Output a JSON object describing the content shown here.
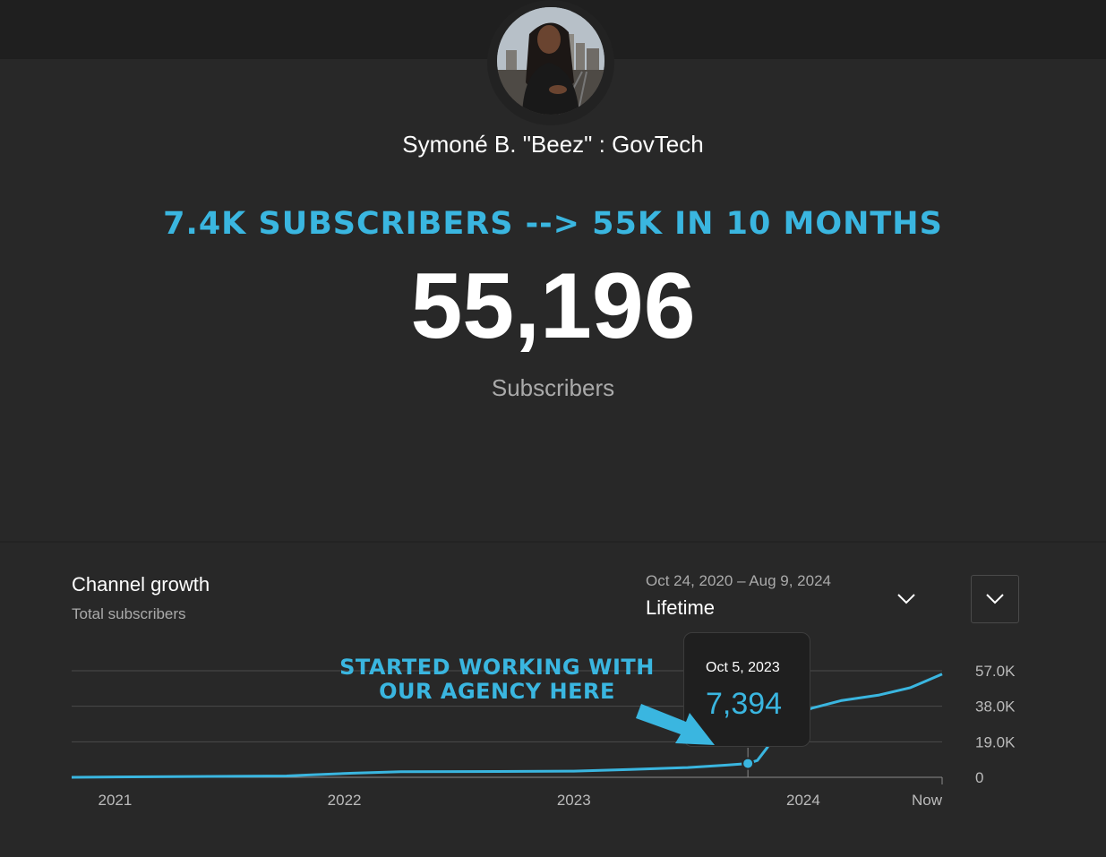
{
  "channel": {
    "name": "Symoné B. \"Beez\" : GovTech"
  },
  "headline": "7.4K SUBSCRIBERS --> 55K IN 10 MONTHS",
  "subscribers": {
    "count": "55,196",
    "label": "Subscribers"
  },
  "growth": {
    "title": "Channel growth",
    "subtitle": "Total subscribers",
    "date_range": "Oct 24, 2020 – Aug 9, 2024",
    "range_label": "Lifetime"
  },
  "annotation": {
    "line1": "STARTED WORKING WITH",
    "line2": "OUR AGENCY HERE"
  },
  "tooltip": {
    "date": "Oct 5, 2023",
    "value": "7,394"
  },
  "colors": {
    "accent": "#3ab6e0",
    "background": "#282828",
    "topbar": "#1f1f1f",
    "grid": "#4a4a4a"
  },
  "icons": {
    "range": "chevron-down-icon",
    "menu": "chevron-down-icon"
  },
  "chart_data": {
    "type": "line",
    "series": [
      {
        "values": [
          {
            "x": "2020-10-24",
            "y": 0
          },
          {
            "x": "2021-03-01",
            "y": 300
          },
          {
            "x": "2021-10-01",
            "y": 700
          },
          {
            "x": "2021-11-01",
            "y": 1200
          },
          {
            "x": "2022-01-15",
            "y": 2200
          },
          {
            "x": "2022-04-01",
            "y": 3000
          },
          {
            "x": "2022-09-01",
            "y": 3100
          },
          {
            "x": "2023-01-01",
            "y": 3300
          },
          {
            "x": "2023-04-01",
            "y": 4200
          },
          {
            "x": "2023-07-01",
            "y": 5200
          },
          {
            "x": "2023-09-01",
            "y": 6500
          },
          {
            "x": "2023-10-05",
            "y": 7394
          },
          {
            "x": "2023-10-20",
            "y": 9000
          },
          {
            "x": "2023-11-05",
            "y": 16000
          },
          {
            "x": "2023-11-20",
            "y": 26000
          },
          {
            "x": "2023-12-10",
            "y": 32000
          },
          {
            "x": "2024-01-15",
            "y": 37000
          },
          {
            "x": "2024-03-01",
            "y": 41000
          },
          {
            "x": "2024-05-01",
            "y": 44000
          },
          {
            "x": "2024-06-20",
            "y": 48000
          },
          {
            "x": "2024-08-09",
            "y": 55196
          }
        ]
      }
    ],
    "x_ticks": [
      "2021",
      "2022",
      "2023",
      "2024",
      "Now"
    ],
    "y_ticks": [
      "57.0K",
      "38.0K",
      "19.0K",
      "0"
    ],
    "y_tick_values": [
      57000,
      38000,
      19000,
      0
    ],
    "xlim": [
      "2020-10-24",
      "2024-08-09"
    ],
    "ylim": [
      0,
      57000
    ],
    "grid": true,
    "highlight": {
      "x": "2023-10-05",
      "y": 7394
    }
  }
}
